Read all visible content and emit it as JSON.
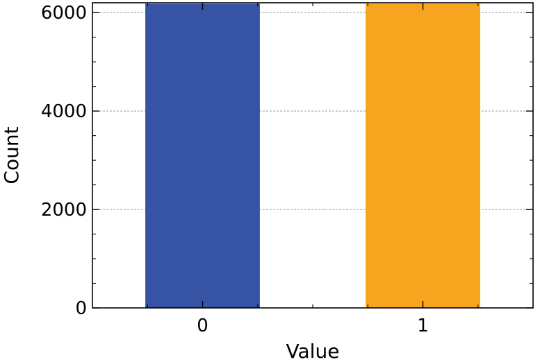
{
  "chart_data": {
    "type": "bar",
    "title": "",
    "xlabel": "Value",
    "ylabel": "Count",
    "categories": [
      "0",
      "1"
    ],
    "values": [
      6180,
      6180
    ],
    "ylim": [
      0,
      6200
    ],
    "yticks": [
      "0",
      "2000",
      "4000",
      "6000"
    ],
    "grid": true,
    "grid_style": "dashed-horizontal",
    "colors": [
      "#3653A4",
      "#F7A51E"
    ],
    "legend": "none"
  }
}
